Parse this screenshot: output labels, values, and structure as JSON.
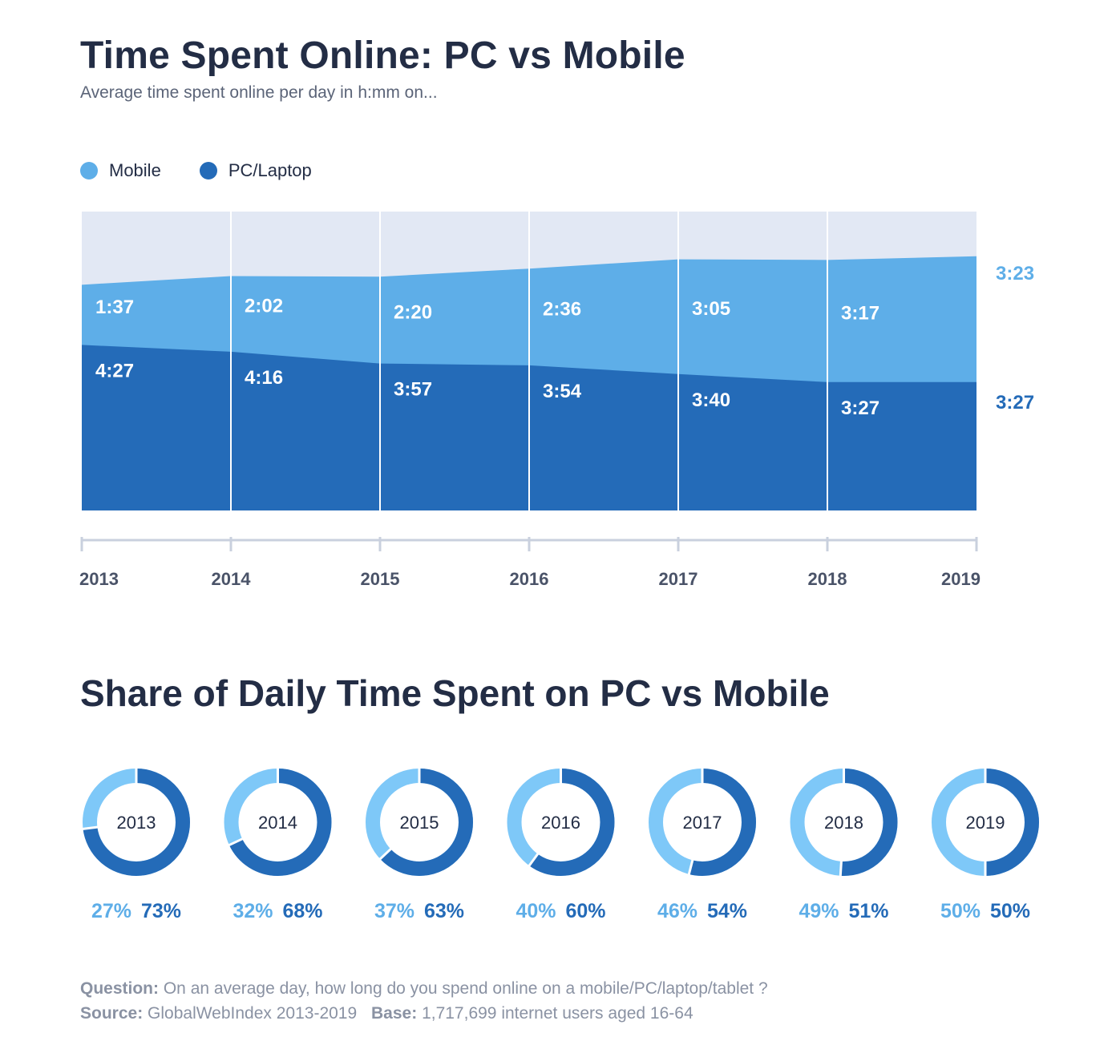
{
  "title": "Time Spent Online: PC vs Mobile",
  "subtitle": "Average time spent online per day in h:mm on...",
  "legend": [
    {
      "label": "Mobile",
      "color": "#5eaee8"
    },
    {
      "label": "PC/Laptop",
      "color": "#246bb8"
    }
  ],
  "section2_title": "Share of Daily Time Spent on PC vs Mobile",
  "footer": {
    "question_label": "Question:",
    "question": "On an average day, how long do you spend online on a mobile/PC/laptop/tablet ?",
    "source_label": "Source:",
    "source": "GlobalWebIndex 2013-2019",
    "base_label": "Base:",
    "base": "1,717,699 internet users aged 16-64"
  },
  "colors": {
    "mobile": "#5eaee8",
    "pc": "#246bb8",
    "background_area": "#e2e8f4",
    "axis": "#c9d0de",
    "donut_mobile": "#7ec8f8",
    "donut_pc": "#246bb8"
  },
  "chart_data": [
    {
      "type": "area",
      "stacked": true,
      "categories": [
        "2013",
        "2014",
        "2015",
        "2016",
        "2017",
        "2018",
        "2019"
      ],
      "series": [
        {
          "name": "PC/Laptop",
          "labels": [
            "4:27",
            "4:16",
            "3:57",
            "3:54",
            "3:40",
            "3:27",
            "3:27"
          ],
          "values_minutes": [
            267,
            256,
            237,
            234,
            220,
            207,
            207
          ]
        },
        {
          "name": "Mobile",
          "labels": [
            "1:37",
            "2:02",
            "2:20",
            "2:36",
            "3:05",
            "3:17",
            "3:23"
          ],
          "values_minutes": [
            97,
            122,
            140,
            156,
            185,
            197,
            203
          ]
        }
      ]
    },
    {
      "type": "pie",
      "title": "Share of Daily Time Spent on PC vs Mobile",
      "donut": true,
      "years": [
        "2013",
        "2014",
        "2015",
        "2016",
        "2017",
        "2018",
        "2019"
      ],
      "series": [
        {
          "name": "Mobile",
          "values": [
            27,
            32,
            37,
            40,
            46,
            49,
            50
          ],
          "labels": [
            "27%",
            "32%",
            "37%",
            "40%",
            "46%",
            "49%",
            "50%"
          ]
        },
        {
          "name": "PC/Laptop",
          "values": [
            73,
            68,
            63,
            60,
            54,
            51,
            50
          ],
          "labels": [
            "73%",
            "68%",
            "63%",
            "60%",
            "54%",
            "51%",
            "50%"
          ]
        }
      ]
    }
  ]
}
